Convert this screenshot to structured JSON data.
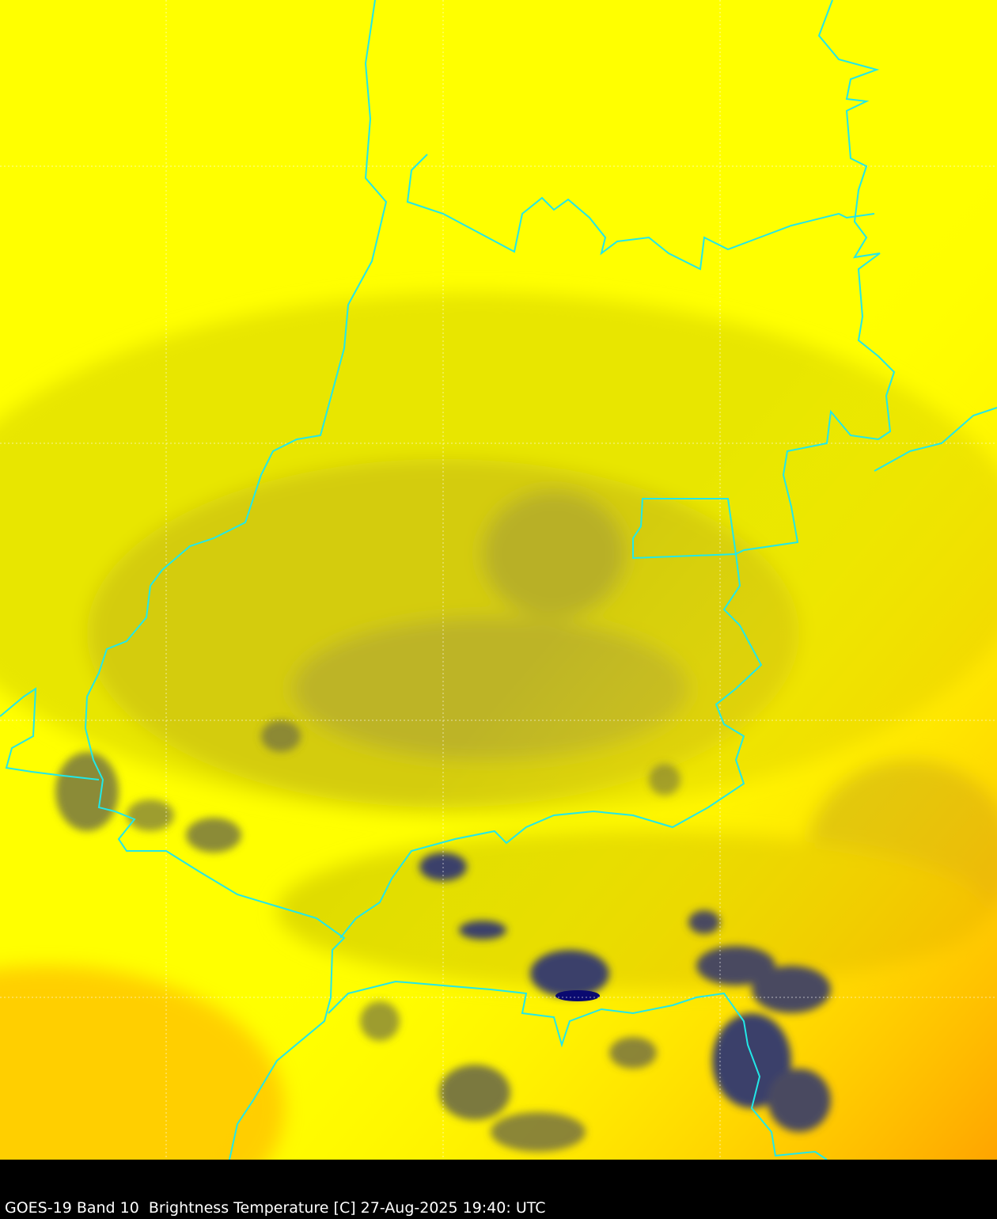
{
  "caption": "GOES-19 Band 10  Brightness Temperature [C] 27-Aug-2025 19:40: UTC",
  "colors": {
    "background_warm": "#ffff00",
    "hot": "#ff9900",
    "mid_cloud": "#c8c020",
    "cold_cloud": "#3a3f6a",
    "coldest": "#0a0a70",
    "boundaries": "#22e8e8",
    "gridlines": "#ffffff",
    "bar": "#000000"
  },
  "legend": "none",
  "grid": true
}
